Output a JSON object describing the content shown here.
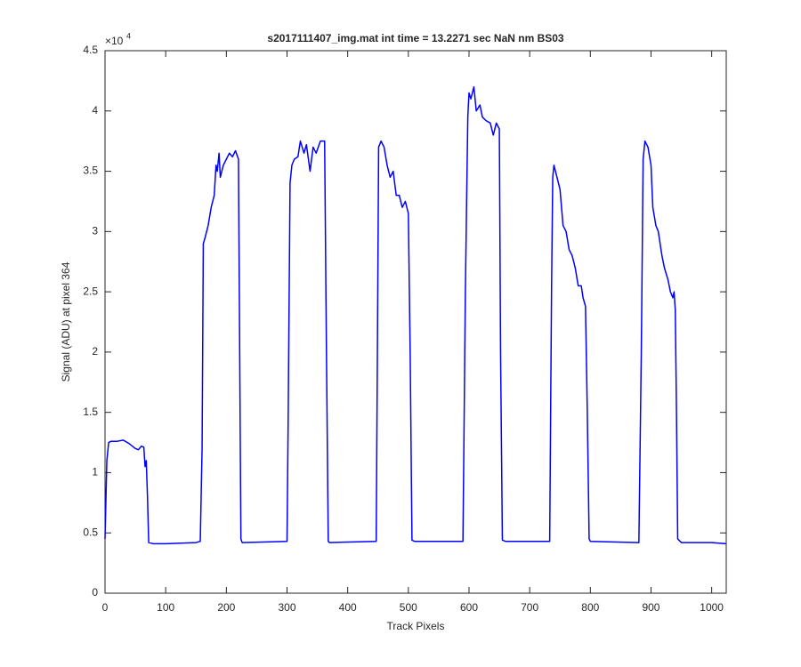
{
  "chart_data": {
    "type": "line",
    "title": "s2017111407_img.mat int time = 13.2271 sec  NaN nm BS03",
    "x_label": "Track Pixels",
    "y_label": "Signal (ADU) at pixel 364",
    "y_multiplier": "×10",
    "y_multiplier_exponent": "4",
    "xlim": [
      0,
      1024
    ],
    "ylim": [
      0,
      4.5
    ],
    "xticks": [
      0,
      100,
      200,
      300,
      400,
      500,
      600,
      700,
      800,
      900,
      1000
    ],
    "yticks": [
      0,
      0.5,
      1,
      1.5,
      2,
      2.5,
      3,
      3.5,
      4,
      4.5
    ],
    "grid": false,
    "series": [
      {
        "color": "#0000ff",
        "x": [
          0,
          3,
          6,
          10,
          20,
          30,
          40,
          50,
          55,
          60,
          64,
          66,
          68,
          70,
          72,
          80,
          100,
          150,
          157,
          160,
          162,
          165,
          170,
          175,
          180,
          183,
          185,
          188,
          190,
          195,
          200,
          205,
          210,
          215,
          220,
          222,
          224,
          226,
          300,
          302,
          305,
          308,
          312,
          318,
          322,
          328,
          332,
          338,
          343,
          348,
          355,
          362,
          365,
          368,
          370,
          447,
          449,
          451,
          455,
          460,
          465,
          470,
          475,
          480,
          485,
          490,
          495,
          500,
          503,
          506,
          510,
          590,
          594,
          598,
          600,
          603,
          608,
          612,
          618,
          622,
          628,
          635,
          640,
          645,
          650,
          652,
          655,
          660,
          733,
          736,
          738,
          740,
          745,
          750,
          755,
          760,
          765,
          770,
          775,
          780,
          785,
          788,
          792,
          795,
          798,
          800,
          880,
          884,
          887,
          890,
          895,
          900,
          903,
          908,
          912,
          918,
          922,
          928,
          932,
          936,
          938,
          940,
          942,
          944,
          950,
          1000,
          1024
        ],
        "values": [
          0.45,
          1.1,
          1.25,
          1.26,
          1.26,
          1.27,
          1.24,
          1.2,
          1.19,
          1.22,
          1.21,
          1.05,
          1.1,
          0.8,
          0.42,
          0.41,
          0.41,
          0.42,
          0.43,
          1.2,
          2.9,
          2.95,
          3.05,
          3.2,
          3.3,
          3.55,
          3.5,
          3.65,
          3.45,
          3.55,
          3.6,
          3.65,
          3.62,
          3.67,
          3.6,
          2.0,
          0.45,
          0.42,
          0.43,
          1.5,
          3.4,
          3.55,
          3.6,
          3.62,
          3.75,
          3.65,
          3.72,
          3.5,
          3.7,
          3.65,
          3.75,
          3.75,
          2.0,
          0.43,
          0.42,
          0.43,
          2.0,
          3.7,
          3.75,
          3.7,
          3.55,
          3.45,
          3.5,
          3.3,
          3.3,
          3.2,
          3.25,
          3.15,
          2.0,
          0.44,
          0.43,
          0.43,
          2.5,
          3.95,
          4.15,
          4.1,
          4.2,
          4.0,
          4.05,
          3.95,
          3.92,
          3.9,
          3.8,
          3.9,
          3.85,
          2.0,
          0.44,
          0.43,
          0.43,
          2.5,
          3.45,
          3.55,
          3.45,
          3.35,
          3.05,
          3.0,
          2.85,
          2.8,
          2.7,
          2.55,
          2.55,
          2.45,
          2.38,
          1.5,
          0.45,
          0.43,
          0.42,
          2.0,
          3.6,
          3.75,
          3.7,
          3.55,
          3.2,
          3.05,
          3.0,
          2.8,
          2.7,
          2.6,
          2.5,
          2.45,
          2.5,
          2.35,
          1.5,
          0.45,
          0.42,
          0.42,
          0.41
        ]
      }
    ]
  }
}
